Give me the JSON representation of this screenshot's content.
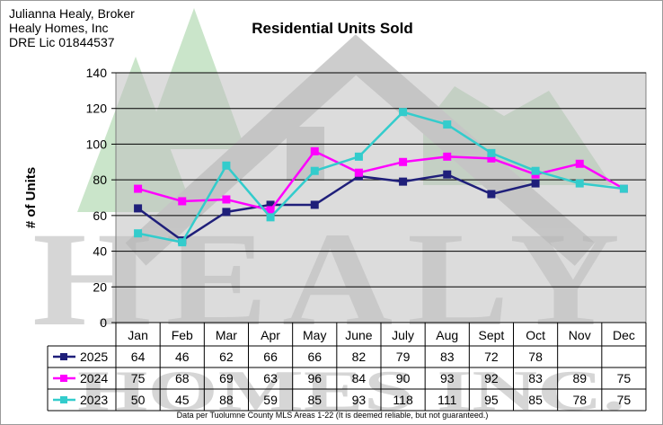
{
  "broker": {
    "name": "Julianna Healy, Broker",
    "company": "Healy Homes, Inc",
    "license": "DRE Lic 01844537"
  },
  "watermark": {
    "word1": "HEALY",
    "word2": "HOMES INC."
  },
  "footnote": "Data per Tuolumne County MLS Areas 1-22 (It is deemed reliable, but not guaranteed.)",
  "colors": {
    "plot_background": "#c0c0c0",
    "watermark_gray": "#a6a6a6",
    "watermark_green": "#9fd19f"
  },
  "chart_data": {
    "type": "line",
    "title": "Residential Units Sold",
    "ylabel": "# of Units",
    "ylim": [
      0,
      140
    ],
    "yticks": [
      0,
      20,
      40,
      60,
      80,
      100,
      120,
      140
    ],
    "grid": true,
    "categories": [
      "Jan",
      "Feb",
      "Mar",
      "Apr",
      "May",
      "June",
      "July",
      "Aug",
      "Sept",
      "Oct",
      "Nov",
      "Dec"
    ],
    "series": [
      {
        "name": "2025",
        "color": "#1f1f7a",
        "marker": "square",
        "values": [
          64,
          46,
          62,
          66,
          66,
          82,
          79,
          83,
          72,
          78,
          null,
          null
        ]
      },
      {
        "name": "2024",
        "color": "#ff00ff",
        "marker": "square",
        "values": [
          75,
          68,
          69,
          63,
          96,
          84,
          90,
          93,
          92,
          83,
          89,
          75
        ]
      },
      {
        "name": "2023",
        "color": "#33cccc",
        "marker": "square",
        "values": [
          50,
          45,
          88,
          59,
          85,
          93,
          118,
          111,
          95,
          85,
          78,
          75
        ]
      }
    ]
  }
}
